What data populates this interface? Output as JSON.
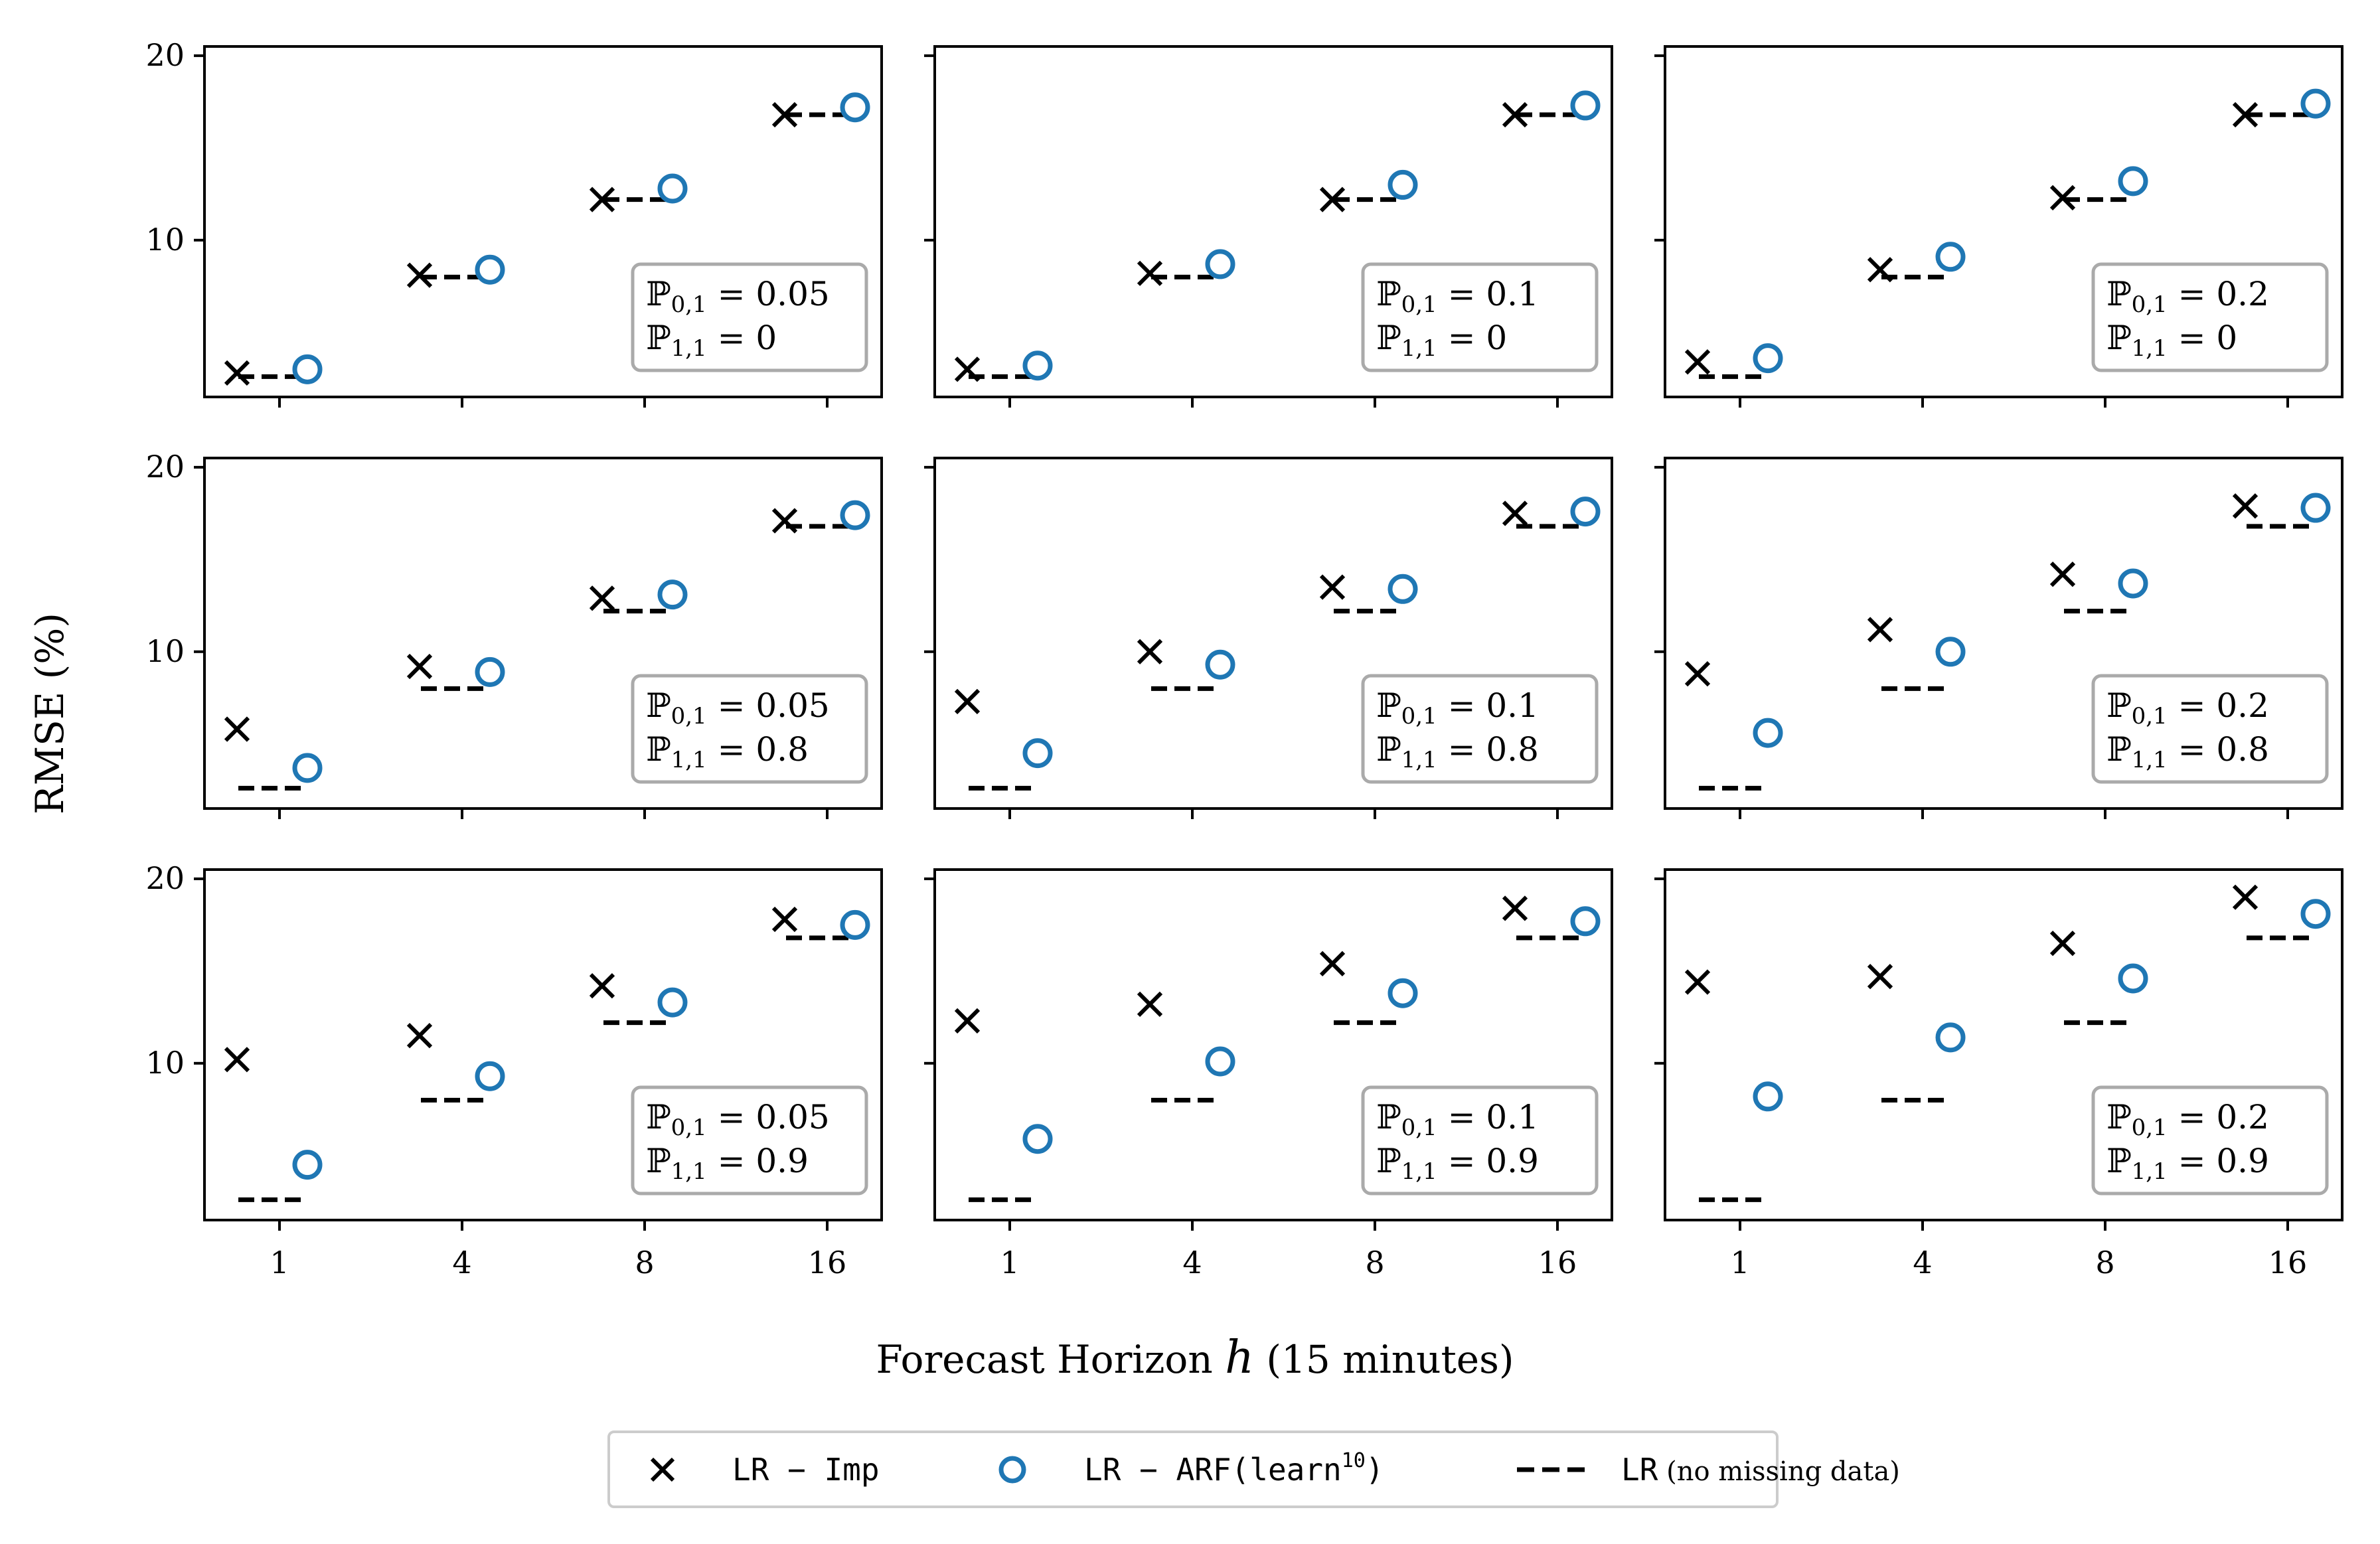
{
  "chart_data": {
    "type": "scatter",
    "ylabel": "RMSE (%)",
    "xlabel_prefix": "Forecast Horizon ",
    "xlabel_var": "h",
    "xlabel_suffix": " (15 minutes)",
    "x_ticks": [
      "1",
      "4",
      "8",
      "16"
    ],
    "y_ticks": [
      10,
      20
    ],
    "ylim": [
      1.5,
      20.5
    ],
    "legend": {
      "placement": "bottom-center",
      "imp_label": "LR − Imp",
      "arf_label_base": "LR − ARF(learn",
      "arf_label_sup": "10",
      "arf_label_close": ")",
      "lr_label_mono": "LR",
      "lr_label_serif": " (no missing data)"
    },
    "colors": {
      "imp": "#000000",
      "arf": "#1f77b4",
      "lr": "#000000"
    },
    "lr_no_missing": [
      2.6,
      8.0,
      12.2,
      16.8
    ],
    "panels": [
      {
        "p01": "0.05",
        "p11": "0",
        "imp": [
          2.8,
          8.1,
          12.2,
          16.8
        ],
        "arf": [
          3.0,
          8.4,
          12.8,
          17.2
        ]
      },
      {
        "p01": "0.1",
        "p11": "0",
        "imp": [
          3.0,
          8.2,
          12.2,
          16.8
        ],
        "arf": [
          3.2,
          8.7,
          13.0,
          17.3
        ]
      },
      {
        "p01": "0.2",
        "p11": "0",
        "imp": [
          3.4,
          8.4,
          12.3,
          16.8
        ],
        "arf": [
          3.6,
          9.1,
          13.2,
          17.4
        ]
      },
      {
        "p01": "0.05",
        "p11": "0.8",
        "imp": [
          5.8,
          9.2,
          12.9,
          17.1
        ],
        "arf": [
          3.7,
          8.9,
          13.1,
          17.4
        ]
      },
      {
        "p01": "0.1",
        "p11": "0.8",
        "imp": [
          7.3,
          10.0,
          13.5,
          17.5
        ],
        "arf": [
          4.5,
          9.3,
          13.4,
          17.6
        ]
      },
      {
        "p01": "0.2",
        "p11": "0.8",
        "imp": [
          8.8,
          11.2,
          14.2,
          17.9
        ],
        "arf": [
          5.6,
          10.0,
          13.7,
          17.8
        ]
      },
      {
        "p01": "0.05",
        "p11": "0.9",
        "imp": [
          10.2,
          11.5,
          14.2,
          17.8
        ],
        "arf": [
          4.5,
          9.3,
          13.3,
          17.5
        ]
      },
      {
        "p01": "0.1",
        "p11": "0.9",
        "imp": [
          12.3,
          13.2,
          15.4,
          18.4
        ],
        "arf": [
          5.9,
          10.1,
          13.8,
          17.7
        ]
      },
      {
        "p01": "0.2",
        "p11": "0.9",
        "imp": [
          14.4,
          14.7,
          16.5,
          19.0
        ],
        "arf": [
          8.2,
          11.4,
          14.6,
          18.1
        ]
      }
    ]
  }
}
